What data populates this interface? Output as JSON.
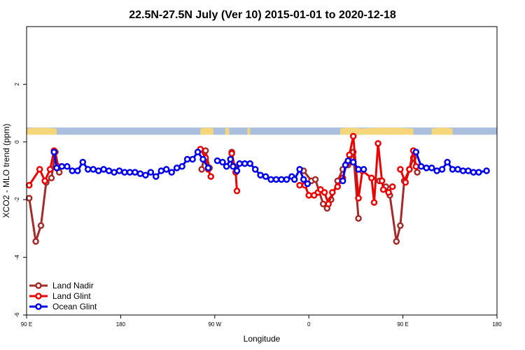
{
  "chart_data": {
    "type": "line",
    "title": "22.5N-27.5N July (Ver 10)   2015-01-01 to 2020-12-18",
    "xlabel": "Longitude",
    "ylabel": "XCO2 - MLO trend (ppm)",
    "xlim": [
      -90,
      270
    ],
    "ylim": [
      -6,
      4
    ],
    "xticks": [
      {
        "value": -90,
        "label": "90 E"
      },
      {
        "value": -18,
        "label": "180"
      },
      {
        "value": 54,
        "label": "90 W"
      },
      {
        "value": 126,
        "label": "0"
      },
      {
        "value": 198,
        "label": "90 E"
      },
      {
        "value": 270,
        "label": "180"
      }
    ],
    "yticks": [
      {
        "value": -6,
        "label": "-6"
      },
      {
        "value": -4,
        "label": "-4"
      },
      {
        "value": -2,
        "label": "-2"
      },
      {
        "value": 0,
        "label": "0"
      },
      {
        "value": 2,
        "label": "2"
      }
    ],
    "grid": false,
    "legend_position": "bottom-left",
    "land_strip": {
      "y_range": [
        0.25,
        0.5
      ],
      "land_color": "#f5d67a",
      "ocean_color": "#a9bfdd",
      "land_segments": [
        [
          -90,
          -67
        ],
        [
          43,
          53
        ],
        [
          62,
          65
        ],
        [
          79,
          81
        ],
        [
          150,
          166
        ],
        [
          165,
          206
        ],
        [
          220,
          236
        ]
      ]
    },
    "series": [
      {
        "name": "Land Nadir",
        "color": "#a52a2a",
        "segments": [
          [
            [
              -88,
              -1.95
            ],
            [
              -83,
              -3.45
            ],
            [
              -79,
              -2.9
            ],
            [
              -75,
              -1.4
            ],
            [
              -71,
              -1.25
            ],
            [
              -68,
              -0.35
            ],
            [
              -65,
              -1.05
            ]
          ],
          [
            [
              44,
              -0.95
            ],
            [
              47,
              -0.3
            ],
            [
              50,
              -0.9
            ]
          ],
          [
            [
              67,
              -0.35
            ],
            [
              69,
              -0.85
            ]
          ],
          [
            [
              122,
              -1.0
            ],
            [
              128,
              -1.35
            ],
            [
              131,
              -1.3
            ],
            [
              137,
              -2.15
            ],
            [
              140,
              -2.3
            ],
            [
              143,
              -2.0
            ],
            [
              148,
              -1.35
            ],
            [
              152,
              -0.95
            ],
            [
              156,
              -0.8
            ],
            [
              160,
              -0.35
            ],
            [
              164,
              -2.65
            ]
          ],
          [
            [
              180,
              -1.35
            ],
            [
              185,
              -1.55
            ],
            [
              188,
              -1.85
            ],
            [
              193,
              -3.45
            ],
            [
              196,
              -2.9
            ],
            [
              199,
              -1.35
            ],
            [
              203,
              -0.95
            ],
            [
              206,
              -0.55
            ],
            [
              209,
              -1.05
            ]
          ]
        ]
      },
      {
        "name": "Land Glint",
        "color": "#ee0000",
        "segments": [
          [
            [
              -88,
              -1.5
            ],
            [
              -80,
              -0.95
            ],
            [
              -76,
              -1.35
            ],
            [
              -72,
              -0.95
            ],
            [
              -69,
              -0.3
            ],
            [
              -66,
              -0.85
            ]
          ],
          [
            [
              43,
              -0.25
            ],
            [
              47,
              -0.55
            ],
            [
              49,
              -0.95
            ],
            [
              51,
              -1.2
            ]
          ],
          [
            [
              67,
              -0.4
            ],
            [
              70,
              -1.05
            ],
            [
              71,
              -1.7
            ]
          ],
          [
            [
              119,
              -1.5
            ],
            [
              123,
              -1.5
            ],
            [
              126,
              -1.85
            ],
            [
              130,
              -1.85
            ],
            [
              133,
              -1.75
            ],
            [
              135,
              -1.65
            ],
            [
              138,
              -1.75
            ],
            [
              141,
              -2.15
            ],
            [
              144,
              -1.75
            ],
            [
              148,
              -1.55
            ],
            [
              152,
              -1.25
            ],
            [
              155,
              -0.75
            ],
            [
              157,
              -0.45
            ],
            [
              160,
              0.2
            ],
            [
              164,
              -1.95
            ],
            [
              167,
              -1.0
            ],
            [
              174,
              -1.25
            ],
            [
              176,
              -2.1
            ],
            [
              179,
              -0.05
            ],
            [
              182,
              -1.35
            ],
            [
              183,
              -1.65
            ],
            [
              187,
              -1.75
            ],
            [
              190,
              -1.55
            ]
          ],
          [
            [
              196,
              -0.95
            ],
            [
              200,
              -1.4
            ],
            [
              203,
              -0.95
            ],
            [
              206,
              -0.3
            ],
            [
              208,
              -0.85
            ]
          ]
        ]
      },
      {
        "name": "Ocean Glint",
        "color": "#0000ee",
        "segments": [
          [
            [
              -69,
              -0.35
            ],
            [
              -67,
              -0.9
            ],
            [
              -63,
              -0.85
            ],
            [
              -59,
              -0.85
            ],
            [
              -55,
              -1.0
            ],
            [
              -51,
              -1.0
            ],
            [
              -47,
              -0.7
            ],
            [
              -43,
              -0.95
            ],
            [
              -39,
              -0.95
            ],
            [
              -35,
              -1.0
            ],
            [
              -31,
              -0.95
            ],
            [
              -27,
              -1.0
            ],
            [
              -23,
              -1.05
            ],
            [
              -19,
              -1.0
            ],
            [
              -15,
              -1.05
            ],
            [
              -11,
              -1.05
            ],
            [
              -7,
              -1.05
            ],
            [
              -3,
              -1.1
            ],
            [
              1,
              -1.15
            ],
            [
              5,
              -1.05
            ],
            [
              9,
              -1.2
            ],
            [
              13,
              -1.0
            ],
            [
              17,
              -0.95
            ],
            [
              21,
              -1.05
            ],
            [
              25,
              -0.9
            ],
            [
              29,
              -0.85
            ],
            [
              33,
              -0.6
            ],
            [
              37,
              -0.6
            ],
            [
              41,
              -0.35
            ],
            [
              45,
              -0.6
            ],
            [
              49,
              -0.9
            ]
          ],
          [
            [
              56,
              -0.65
            ],
            [
              60,
              -0.7
            ],
            [
              63,
              -0.85
            ],
            [
              66,
              -0.6
            ],
            [
              68,
              -0.85
            ],
            [
              71,
              -1.0
            ],
            [
              73,
              -0.75
            ],
            [
              77,
              -0.75
            ],
            [
              81,
              -0.75
            ],
            [
              85,
              -0.95
            ],
            [
              89,
              -1.15
            ],
            [
              93,
              -1.2
            ],
            [
              97,
              -1.3
            ],
            [
              101,
              -1.3
            ],
            [
              105,
              -1.3
            ],
            [
              109,
              -1.3
            ],
            [
              113,
              -1.2
            ],
            [
              115,
              -1.3
            ],
            [
              119,
              -0.95
            ],
            [
              122,
              -1.3
            ],
            [
              125,
              -1.45
            ]
          ],
          [
            [
              152,
              -1.35
            ],
            [
              154,
              -0.8
            ],
            [
              156,
              -0.65
            ],
            [
              160,
              -0.7
            ],
            [
              164,
              -0.95
            ],
            [
              168,
              -0.95
            ]
          ],
          [
            [
              208,
              -0.35
            ],
            [
              212,
              -0.85
            ],
            [
              216,
              -0.9
            ],
            [
              220,
              -0.9
            ],
            [
              224,
              -1.0
            ],
            [
              228,
              -0.95
            ],
            [
              232,
              -0.7
            ],
            [
              236,
              -0.95
            ],
            [
              240,
              -0.95
            ],
            [
              244,
              -1.0
            ],
            [
              248,
              -1.0
            ],
            [
              252,
              -1.05
            ],
            [
              256,
              -1.05
            ],
            [
              262,
              -1.0
            ]
          ]
        ]
      }
    ]
  }
}
